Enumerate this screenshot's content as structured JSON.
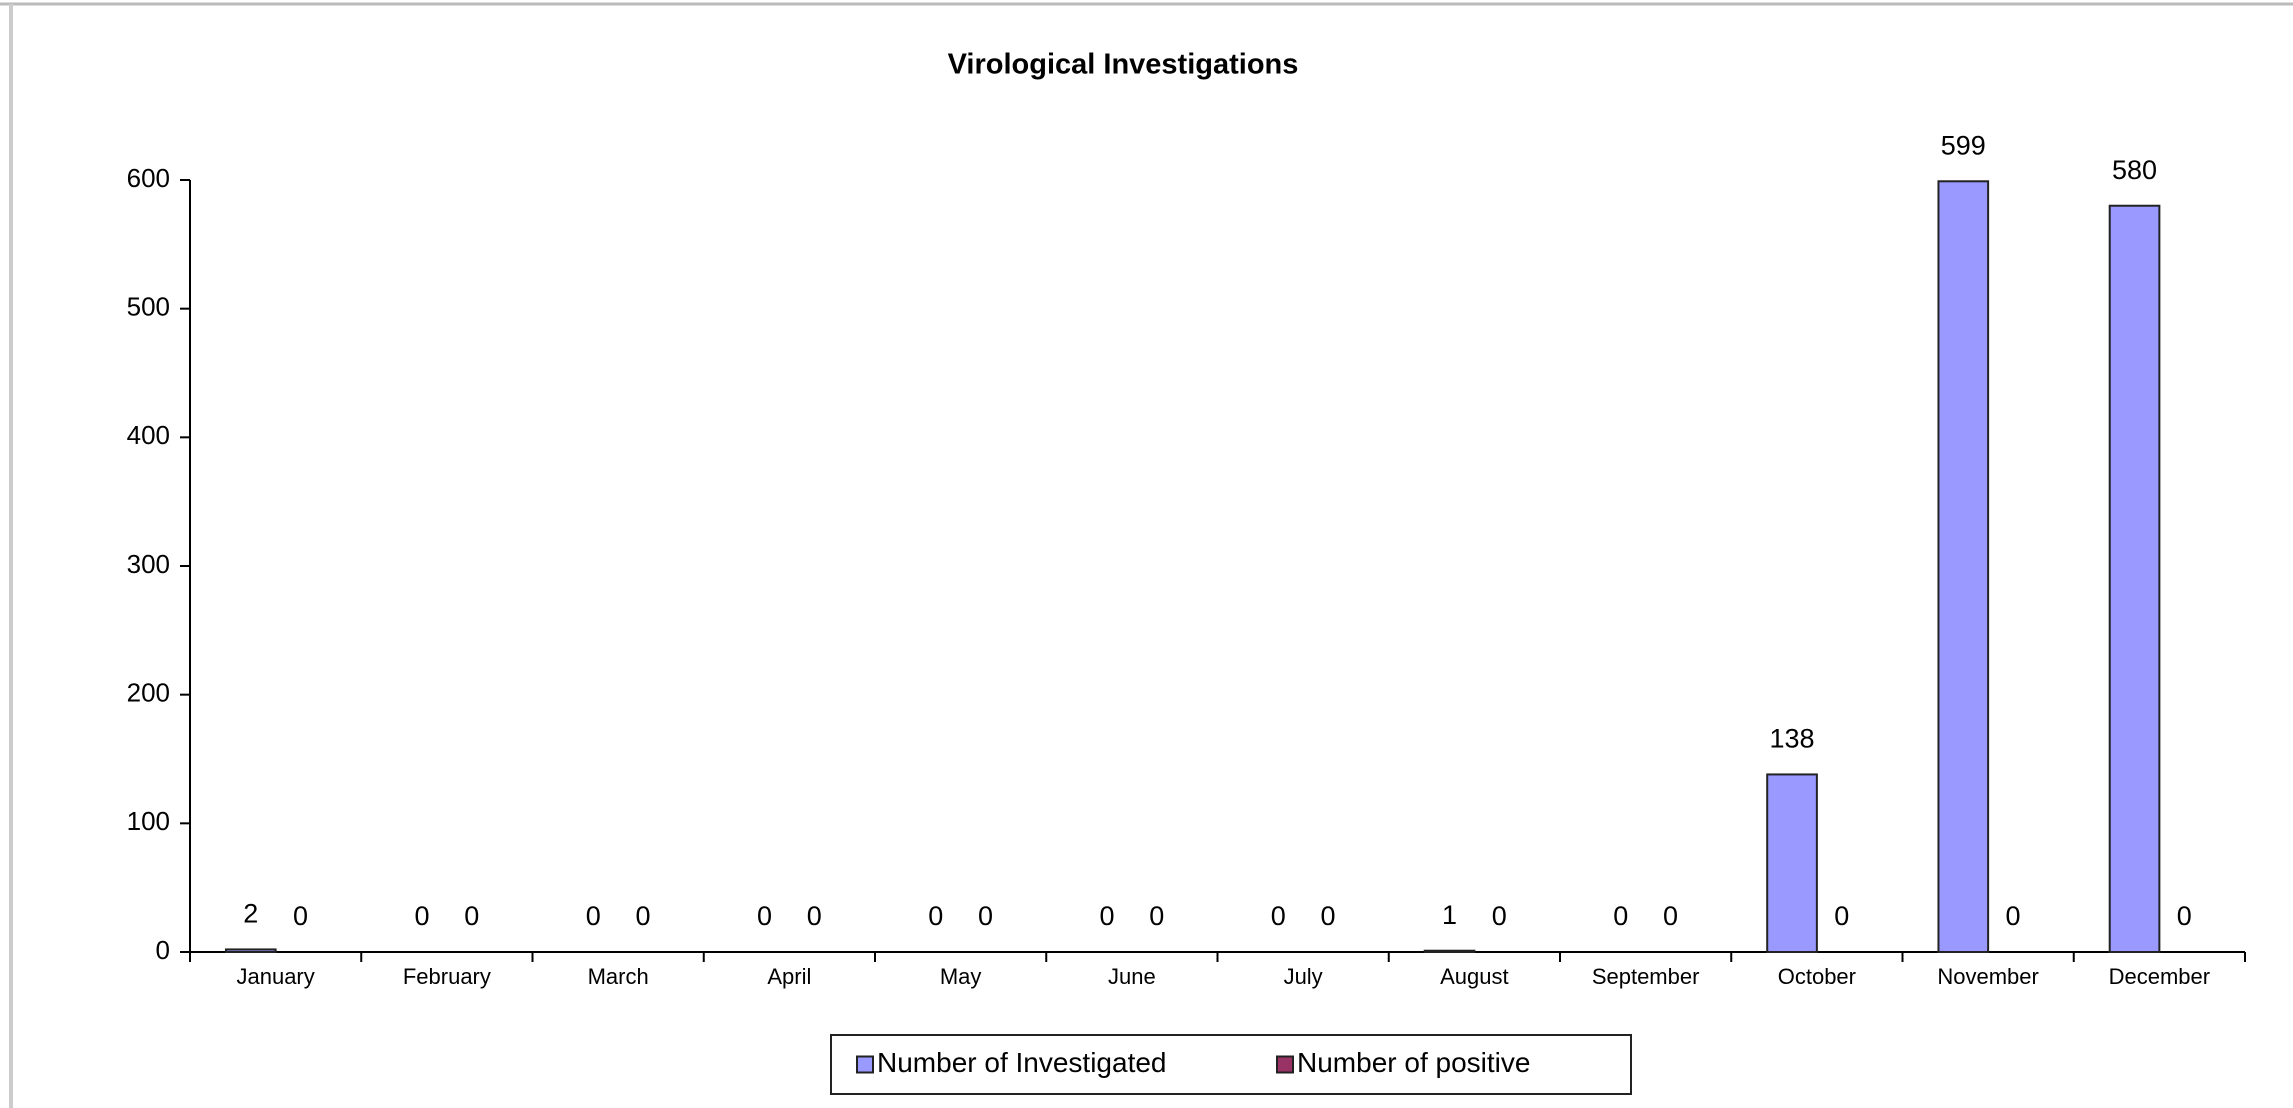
{
  "chart_data": {
    "type": "bar",
    "title": "Virological Investigations",
    "categories": [
      "January",
      "February",
      "March",
      "April",
      "May",
      "June",
      "July",
      "August",
      "September",
      "October",
      "November",
      "December"
    ],
    "series": [
      {
        "name": "Number of Investigated",
        "color": "#9999ff",
        "values": [
          2,
          0,
          0,
          0,
          0,
          0,
          0,
          1,
          0,
          138,
          599,
          580
        ]
      },
      {
        "name": "Number of positive",
        "color": "#993366",
        "values": [
          0,
          0,
          0,
          0,
          0,
          0,
          0,
          0,
          0,
          0,
          0,
          0
        ]
      }
    ],
    "ylim": [
      0,
      600
    ],
    "yticks": [
      0,
      100,
      200,
      300,
      400,
      500,
      600
    ],
    "grid": false,
    "legend": "bottom"
  }
}
